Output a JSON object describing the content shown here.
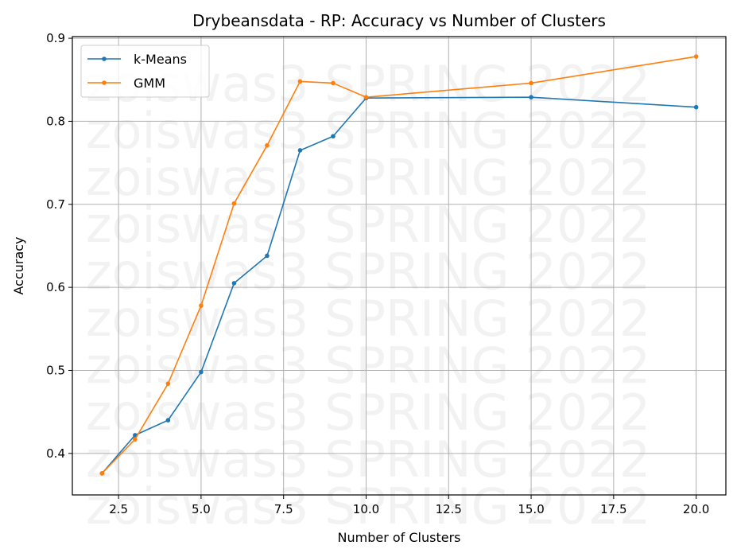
{
  "chart_data": {
    "type": "line",
    "title": "Drybeansdata - RP: Accuracy vs Number of Clusters",
    "xlabel": "Number of Clusters",
    "ylabel": "Accuracy",
    "xlim": [
      1.1,
      20.9
    ],
    "ylim": [
      0.35,
      0.902
    ],
    "x_ticks": [
      2.5,
      5.0,
      7.5,
      10.0,
      12.5,
      15.0,
      17.5,
      20.0
    ],
    "x_tick_labels": [
      "2.5",
      "5.0",
      "7.5",
      "10.0",
      "12.5",
      "15.0",
      "17.5",
      "20.0"
    ],
    "y_ticks": [
      0.4,
      0.5,
      0.6,
      0.7,
      0.8,
      0.9
    ],
    "y_tick_labels": [
      "0.4",
      "0.5",
      "0.6",
      "0.7",
      "0.8",
      "0.9"
    ],
    "grid": true,
    "legend_position": "top-left",
    "x": [
      2,
      3,
      4,
      5,
      6,
      7,
      8,
      9,
      10,
      15,
      20
    ],
    "series": [
      {
        "name": "k-Means",
        "color": "#1f77b4",
        "values": [
          0.376,
          0.422,
          0.44,
          0.498,
          0.605,
          0.638,
          0.765,
          0.782,
          0.828,
          0.829,
          0.817
        ]
      },
      {
        "name": "GMM",
        "color": "#ff7f0e",
        "values": [
          0.376,
          0.417,
          0.484,
          0.578,
          0.701,
          0.771,
          0.848,
          0.846,
          0.829,
          0.846,
          0.878
        ]
      }
    ],
    "watermark": "zoiswas3 SPRING 2022"
  }
}
